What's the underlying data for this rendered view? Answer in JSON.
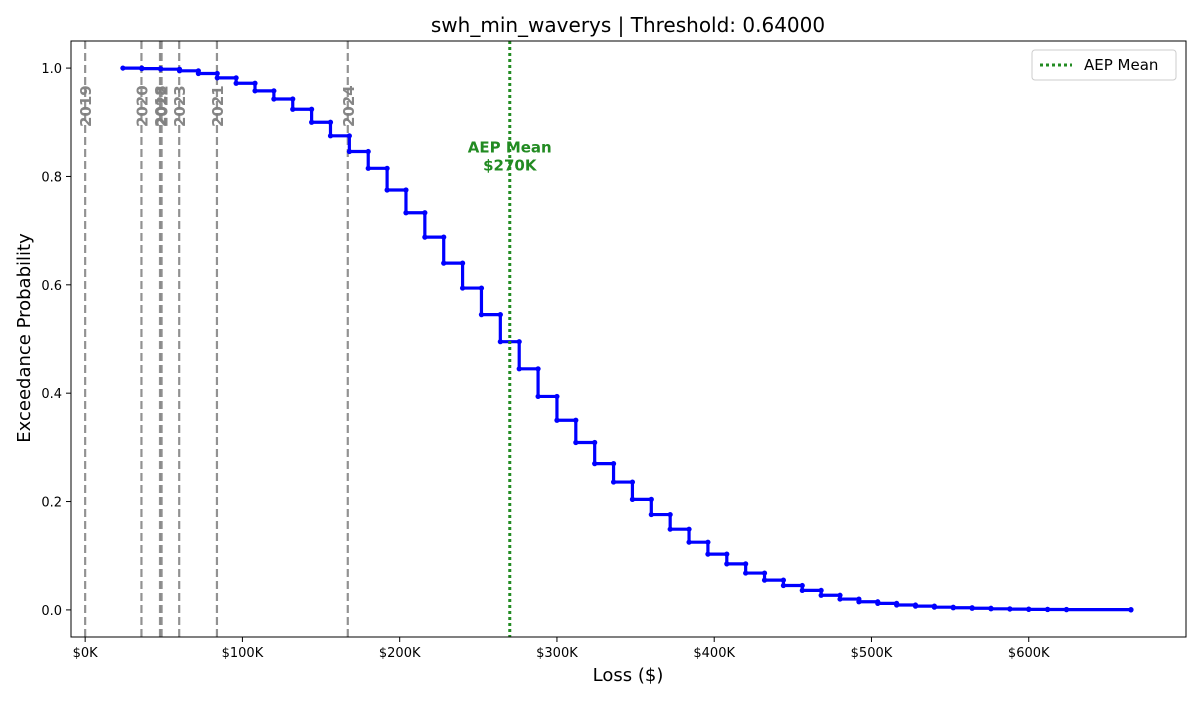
{
  "chart_data": {
    "type": "line",
    "title": "swh_min_waverys | Threshold: 0.64000",
    "xlabel": "Loss ($)",
    "ylabel": "Exceedance Probability",
    "xlim": [
      -9000,
      700000
    ],
    "ylim": [
      -0.05,
      1.05
    ],
    "x_ticks": [
      {
        "value": 0,
        "label": "$0K"
      },
      {
        "value": 100000,
        "label": "$100K"
      },
      {
        "value": 200000,
        "label": "$200K"
      },
      {
        "value": 300000,
        "label": "$300K"
      },
      {
        "value": 400000,
        "label": "$400K"
      },
      {
        "value": 500000,
        "label": "$500K"
      },
      {
        "value": 600000,
        "label": "$600K"
      }
    ],
    "y_ticks": [
      {
        "value": 0.0,
        "label": "0.0"
      },
      {
        "value": 0.2,
        "label": "0.2"
      },
      {
        "value": 0.4,
        "label": "0.4"
      },
      {
        "value": 0.6,
        "label": "0.6"
      },
      {
        "value": 0.8,
        "label": "0.8"
      },
      {
        "value": 1.0,
        "label": "1.0"
      }
    ],
    "series": [
      {
        "color": "#0000ff",
        "style": "steps-post",
        "x": [
          24000,
          36000,
          48000,
          60000,
          72000,
          84000,
          96000,
          108000,
          120000,
          132000,
          144000,
          156000,
          168000,
          180000,
          192000,
          204000,
          216000,
          228000,
          240000,
          252000,
          264000,
          276000,
          288000,
          300000,
          312000,
          324000,
          336000,
          348000,
          360000,
          372000,
          384000,
          396000,
          408000,
          420000,
          432000,
          444000,
          456000,
          468000,
          480000,
          492000,
          504000,
          516000,
          528000,
          540000,
          552000,
          564000,
          576000,
          588000,
          600000,
          612000,
          624000,
          665000
        ],
        "y": [
          1.0,
          0.999,
          0.998,
          0.995,
          0.99,
          0.982,
          0.972,
          0.958,
          0.943,
          0.924,
          0.9,
          0.875,
          0.846,
          0.815,
          0.775,
          0.733,
          0.688,
          0.64,
          0.594,
          0.545,
          0.495,
          0.445,
          0.394,
          0.35,
          0.309,
          0.27,
          0.236,
          0.204,
          0.176,
          0.149,
          0.125,
          0.103,
          0.085,
          0.068,
          0.055,
          0.045,
          0.036,
          0.027,
          0.02,
          0.015,
          0.012,
          0.009,
          0.007,
          0.005,
          0.004,
          0.003,
          0.002,
          0.0015,
          0.001,
          0.0008,
          0.0005,
          0.0
        ]
      }
    ],
    "year_markers": [
      {
        "label": "2019",
        "x": 0
      },
      {
        "label": "2020",
        "x": 35800
      },
      {
        "label": "2018",
        "x": 47600
      },
      {
        "label": "2022",
        "x": 48600
      },
      {
        "label": "2023",
        "x": 59800
      },
      {
        "label": "2021",
        "x": 83800
      },
      {
        "label": "2024",
        "x": 167000
      }
    ],
    "aep_mean": {
      "value": 270000,
      "label_line1": "AEP Mean",
      "label_line2": "$270K",
      "annotation_y": 0.82
    },
    "legend": {
      "placement": "top-right",
      "entries": [
        {
          "name": "AEP Mean",
          "color": "#228b22",
          "style": "dotted"
        }
      ]
    },
    "grid": false
  },
  "colors": {
    "curve": "#0000ff",
    "year_marker": "#808080",
    "aep": "#228b22",
    "axis": "#000000"
  }
}
